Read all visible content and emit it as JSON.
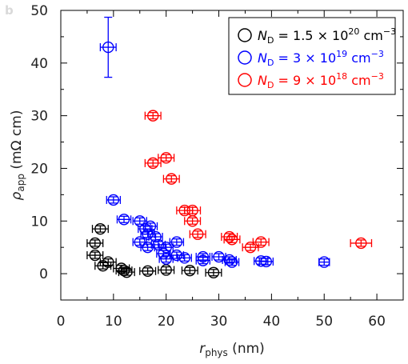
{
  "panel_label": "b",
  "chart_data": {
    "type": "scatter",
    "title": "",
    "xlabel": {
      "main": "r",
      "sub": "phys",
      "unit": " (nm)"
    },
    "ylabel": {
      "main": "ρ",
      "sub": "app",
      "unit": " (mΩ cm)"
    },
    "xlim": [
      0,
      65
    ],
    "ylim": [
      -5,
      50
    ],
    "xticks": [
      0,
      10,
      20,
      30,
      40,
      50,
      60
    ],
    "yticks": [
      0,
      10,
      20,
      30,
      40,
      50
    ],
    "xtick_labels": [
      "0",
      "10",
      "20",
      "30",
      "40",
      "50",
      "60"
    ],
    "ytick_labels": [
      "0",
      "10",
      "20",
      "30",
      "40",
      "50"
    ],
    "grid": false,
    "legend_position": "top-right",
    "series": [
      {
        "name": "N_D = 1.5×10^20 cm^-3",
        "legend": {
          "pre": "N",
          "sub": "D",
          "mid": " = 1.5 × 10",
          "sup": "20",
          "post": " cm",
          "sup2": "−3"
        },
        "color": "#000000",
        "points": [
          {
            "x": 7.5,
            "y": 8.5,
            "xerr": 1.5,
            "yerr": 0.6
          },
          {
            "x": 6.5,
            "y": 5.8,
            "xerr": 1.5,
            "yerr": 0.6
          },
          {
            "x": 6.5,
            "y": 3.5,
            "xerr": 1.5,
            "yerr": 0.6
          },
          {
            "x": 8.0,
            "y": 1.5,
            "xerr": 1.5,
            "yerr": 0.6
          },
          {
            "x": 9.0,
            "y": 2.2,
            "xerr": 1.5,
            "yerr": 0.6
          },
          {
            "x": 11.5,
            "y": 1.0,
            "xerr": 1.5,
            "yerr": 0.6
          },
          {
            "x": 12.0,
            "y": 0.6,
            "xerr": 1.5,
            "yerr": 0.6
          },
          {
            "x": 12.5,
            "y": 0.3,
            "xerr": 1.5,
            "yerr": 0.6
          },
          {
            "x": 16.5,
            "y": 0.5,
            "xerr": 1.5,
            "yerr": 0.6
          },
          {
            "x": 20.0,
            "y": 0.7,
            "xerr": 1.5,
            "yerr": 0.6
          },
          {
            "x": 24.5,
            "y": 0.6,
            "xerr": 1.5,
            "yerr": 0.6
          },
          {
            "x": 29.0,
            "y": 0.2,
            "xerr": 1.5,
            "yerr": 0.6
          }
        ]
      },
      {
        "name": "N_D = 3×10^19 cm^-3",
        "legend": {
          "pre": "N",
          "sub": "D",
          "mid": " = 3 × 10",
          "sup": "19",
          "post": " cm",
          "sup2": "−3"
        },
        "color": "#0000ff",
        "points": [
          {
            "x": 9.0,
            "y": 43.0,
            "xerr": 1.5,
            "yerr": 5.7
          },
          {
            "x": 10.0,
            "y": 14.0,
            "xerr": 1.3,
            "yerr": 0.6
          },
          {
            "x": 12.0,
            "y": 10.3,
            "xerr": 1.3,
            "yerr": 0.6
          },
          {
            "x": 15.0,
            "y": 10.0,
            "xerr": 1.3,
            "yerr": 0.6
          },
          {
            "x": 16.0,
            "y": 8.5,
            "xerr": 1.3,
            "yerr": 0.6
          },
          {
            "x": 17.0,
            "y": 9.0,
            "xerr": 1.3,
            "yerr": 0.6
          },
          {
            "x": 16.5,
            "y": 7.5,
            "xerr": 1.3,
            "yerr": 0.6
          },
          {
            "x": 18.0,
            "y": 7.0,
            "xerr": 1.3,
            "yerr": 0.6
          },
          {
            "x": 15.0,
            "y": 6.0,
            "xerr": 1.3,
            "yerr": 0.6
          },
          {
            "x": 16.5,
            "y": 5.0,
            "xerr": 1.3,
            "yerr": 0.6
          },
          {
            "x": 18.5,
            "y": 5.5,
            "xerr": 1.3,
            "yerr": 0.6
          },
          {
            "x": 20.0,
            "y": 5.0,
            "xerr": 1.3,
            "yerr": 0.6
          },
          {
            "x": 22.0,
            "y": 6.0,
            "xerr": 1.3,
            "yerr": 0.6
          },
          {
            "x": 19.5,
            "y": 3.8,
            "xerr": 1.3,
            "yerr": 0.6
          },
          {
            "x": 20.0,
            "y": 2.8,
            "xerr": 1.3,
            "yerr": 0.6
          },
          {
            "x": 22.0,
            "y": 3.5,
            "xerr": 1.3,
            "yerr": 0.6
          },
          {
            "x": 23.5,
            "y": 3.0,
            "xerr": 1.3,
            "yerr": 0.6
          },
          {
            "x": 27.0,
            "y": 3.2,
            "xerr": 1.3,
            "yerr": 0.6
          },
          {
            "x": 27.0,
            "y": 2.5,
            "xerr": 1.3,
            "yerr": 0.6
          },
          {
            "x": 30.0,
            "y": 3.2,
            "xerr": 1.3,
            "yerr": 0.6
          },
          {
            "x": 32.0,
            "y": 2.6,
            "xerr": 1.3,
            "yerr": 0.6
          },
          {
            "x": 32.5,
            "y": 2.2,
            "xerr": 1.3,
            "yerr": 0.6
          },
          {
            "x": 38.0,
            "y": 2.4,
            "xerr": 1.3,
            "yerr": 0.6
          },
          {
            "x": 39.0,
            "y": 2.3,
            "xerr": 1.3,
            "yerr": 0.6
          },
          {
            "x": 50.0,
            "y": 2.2,
            "xerr": 1.0,
            "yerr": 0.6
          }
        ]
      },
      {
        "name": "N_D = 9×10^18 cm^-3",
        "legend": {
          "pre": "N",
          "sub": "D",
          "mid": " = 9 × 10",
          "sup": "18",
          "post": " cm",
          "sup2": "−3"
        },
        "color": "#ff0000",
        "points": [
          {
            "x": 17.5,
            "y": 30.0,
            "xerr": 1.5,
            "yerr": 0.6
          },
          {
            "x": 17.5,
            "y": 21.0,
            "xerr": 1.5,
            "yerr": 0.6
          },
          {
            "x": 20.0,
            "y": 22.0,
            "xerr": 1.5,
            "yerr": 0.6
          },
          {
            "x": 21.0,
            "y": 18.0,
            "xerr": 1.5,
            "yerr": 0.6
          },
          {
            "x": 23.5,
            "y": 12.0,
            "xerr": 1.5,
            "yerr": 0.6
          },
          {
            "x": 25.0,
            "y": 12.0,
            "xerr": 1.5,
            "yerr": 0.6
          },
          {
            "x": 25.0,
            "y": 10.0,
            "xerr": 1.5,
            "yerr": 0.6
          },
          {
            "x": 26.0,
            "y": 7.5,
            "xerr": 1.5,
            "yerr": 0.6
          },
          {
            "x": 32.0,
            "y": 7.0,
            "xerr": 1.5,
            "yerr": 0.6
          },
          {
            "x": 32.5,
            "y": 6.5,
            "xerr": 1.5,
            "yerr": 0.6
          },
          {
            "x": 36.0,
            "y": 5.0,
            "xerr": 1.5,
            "yerr": 0.6
          },
          {
            "x": 38.0,
            "y": 6.0,
            "xerr": 1.5,
            "yerr": 0.6
          },
          {
            "x": 57.0,
            "y": 5.8,
            "xerr": 2.0,
            "yerr": 0.6
          }
        ]
      }
    ]
  }
}
